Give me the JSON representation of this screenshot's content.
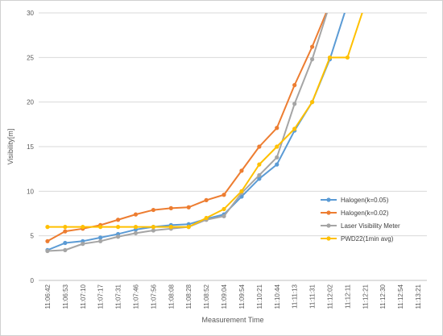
{
  "chart_data": {
    "type": "line",
    "xlabel": "Measurement Time",
    "ylabel": "Visibility[m]",
    "ylim": [
      0,
      30
    ],
    "yticks": [
      0,
      5,
      10,
      15,
      20,
      25,
      30
    ],
    "grid": "horizontal",
    "legend_position": "right",
    "categories": [
      "11:06:42",
      "11:06:53",
      "11:07:10",
      "11:07:17",
      "11:07:31",
      "11:07:46",
      "11:07:56",
      "11:08:08",
      "11:08:28",
      "11:08:52",
      "11:09:04",
      "11:09:54",
      "11:10:21",
      "11:10:44",
      "11:11:13",
      "11:11:31",
      "11:12:02",
      "11:12:11",
      "11:12:21",
      "11:12:30",
      "11:12:54",
      "11:13:21"
    ],
    "series": [
      {
        "name": "Halogen(k=0.05)",
        "color": "#5b9bd5",
        "values": [
          3.4,
          4.2,
          4.4,
          4.8,
          5.2,
          5.7,
          6.0,
          6.2,
          6.3,
          6.9,
          7.4,
          9.4,
          11.4,
          13.0,
          16.8,
          20.0,
          24.8,
          31.0,
          null,
          null,
          null,
          null
        ]
      },
      {
        "name": "Halogen(k=0.02)",
        "color": "#ed7d31",
        "values": [
          4.4,
          5.5,
          5.8,
          6.2,
          6.8,
          7.4,
          7.9,
          8.1,
          8.2,
          9.0,
          9.6,
          12.3,
          15.0,
          17.1,
          21.9,
          26.2,
          31.0,
          null,
          null,
          null,
          null,
          null
        ]
      },
      {
        "name": "Laser Visibility Meter",
        "color": "#a5a5a5",
        "values": [
          3.3,
          3.4,
          4.1,
          4.4,
          4.9,
          5.3,
          5.6,
          5.8,
          6.0,
          6.8,
          7.2,
          9.8,
          11.8,
          13.8,
          19.8,
          24.8,
          31.0,
          null,
          null,
          null,
          null,
          null
        ]
      },
      {
        "name": "PWD22(1min avg)",
        "color": "#ffc000",
        "values": [
          6.0,
          6.0,
          6.0,
          6.0,
          6.0,
          6.0,
          6.0,
          6.0,
          6.0,
          7.0,
          8.0,
          10.0,
          13.0,
          15.0,
          17.0,
          20.0,
          25.0,
          25.0,
          31.0,
          null,
          null,
          null
        ]
      }
    ]
  }
}
